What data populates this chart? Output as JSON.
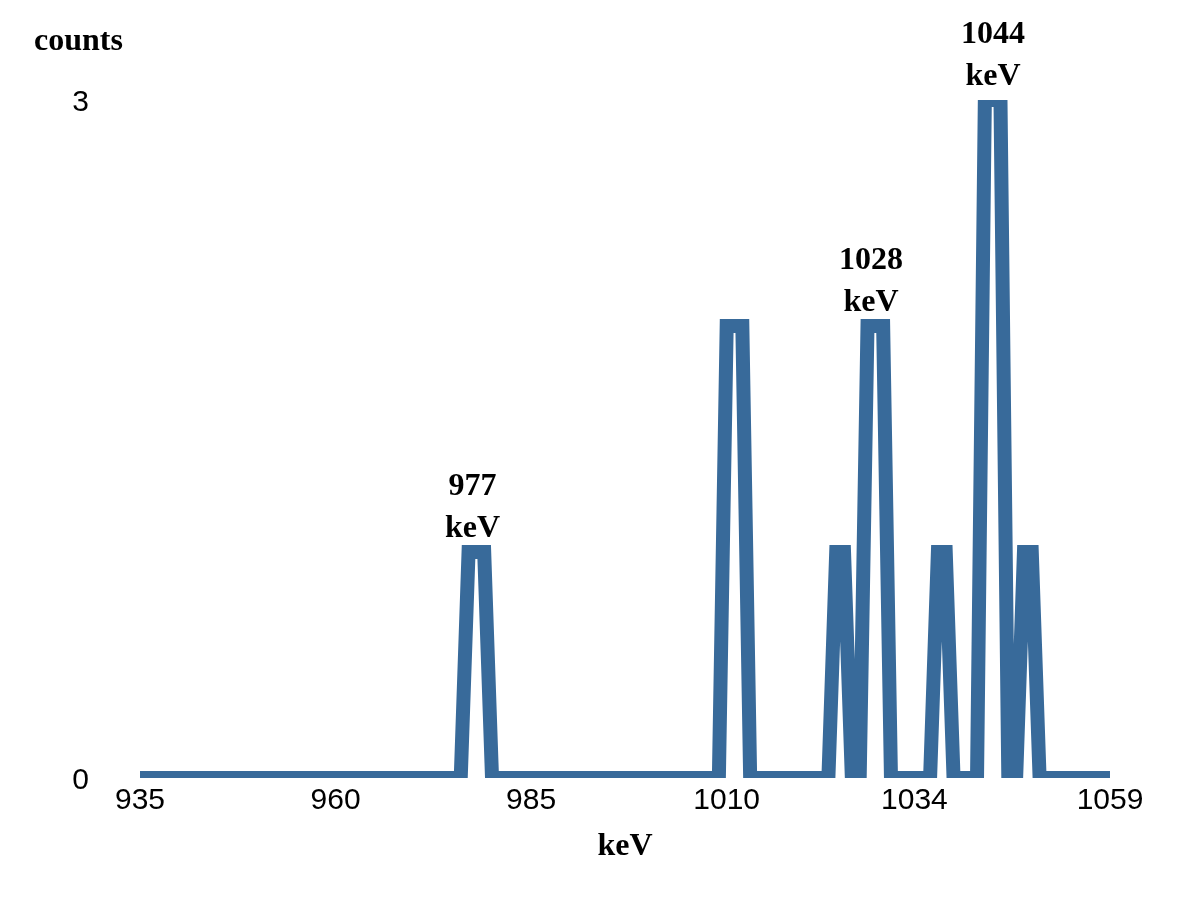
{
  "chart_data": {
    "type": "line",
    "xlabel": "keV",
    "ylabel": "counts",
    "x": [
      935,
      976,
      977,
      979,
      980,
      1009,
      1010,
      1012,
      1013,
      1023,
      1024,
      1025,
      1026,
      1027,
      1028,
      1030,
      1031,
      1036,
      1037,
      1038,
      1039,
      1042,
      1043,
      1045,
      1046,
      1047,
      1048,
      1049,
      1050,
      1059
    ],
    "series": [
      {
        "color": "#386a9a",
        "values": [
          0,
          0,
          1,
          1,
          0,
          0,
          2,
          2,
          0,
          0,
          1,
          1,
          0,
          0,
          2,
          2,
          0,
          0,
          1,
          1,
          0,
          0,
          3,
          3,
          0,
          0,
          1,
          1,
          0,
          0
        ]
      }
    ],
    "xlim": [
      935,
      1059
    ],
    "xticks": [
      935,
      960,
      985,
      1010,
      1034,
      1059
    ],
    "ylim": [
      0,
      3
    ],
    "yticks": [
      0,
      3
    ],
    "annotations": [
      {
        "text": "977\nkeV",
        "x": 977.5,
        "y": 1
      },
      {
        "text": "1028\nkeV",
        "x": 1028.5,
        "y": 2
      },
      {
        "text": "1044\nkeV",
        "x": 1044,
        "y": 3
      }
    ],
    "marker": "none",
    "line_style": "solid"
  }
}
